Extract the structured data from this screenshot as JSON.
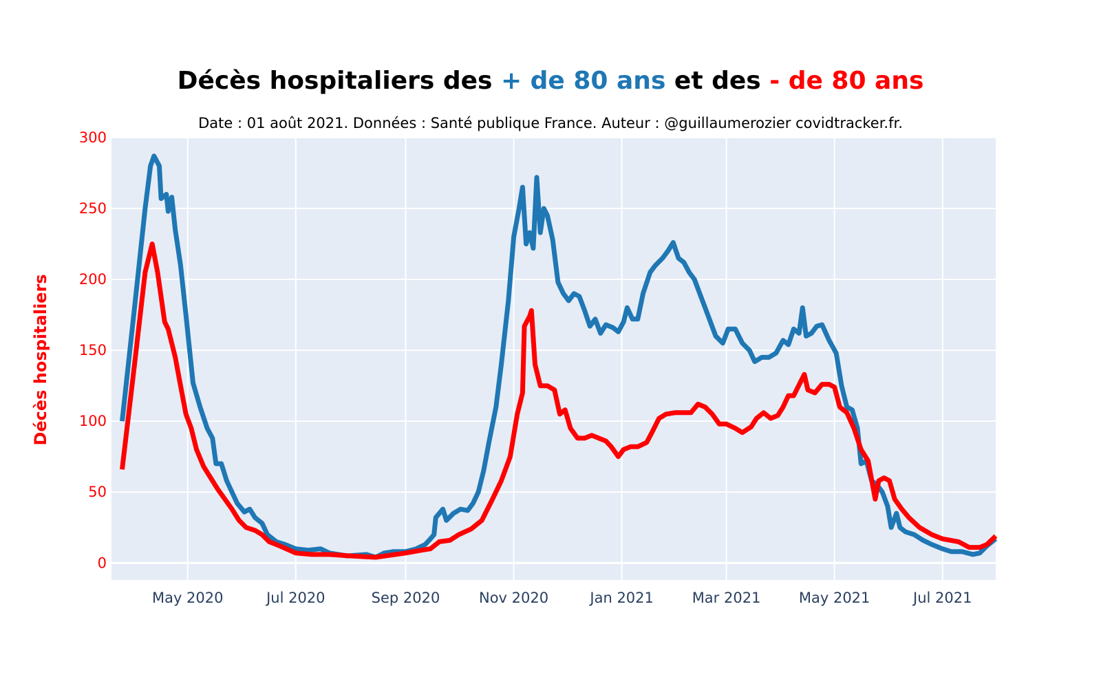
{
  "colors": {
    "over80": "#1f77b4",
    "under80": "#ff0000",
    "plot_bg": "#e5ecf6",
    "grid": "#ffffff",
    "tick_text": "#2a3f5f"
  },
  "chart_data": {
    "type": "line",
    "title": {
      "part1": "Décès hospitaliers des ",
      "part2": "+ de 80 ans",
      "part3": " et des ",
      "part4": "- de 80 ans"
    },
    "subtitle": "Date : 01 août 2021. Données : Santé publique France. Auteur : @guillaumerozier covidtracker.fr.",
    "ylabel": "Décès hospitaliers",
    "xlabel": "",
    "ylim": [
      -12,
      300
    ],
    "xlim": [
      "2020-03-19",
      "2021-07-31"
    ],
    "y_ticks": [
      0,
      50,
      100,
      150,
      200,
      250,
      300
    ],
    "x_ticks": [
      {
        "date": "2020-05-01",
        "label": "May 2020"
      },
      {
        "date": "2020-07-01",
        "label": "Jul 2020"
      },
      {
        "date": "2020-09-01",
        "label": "Sep 2020"
      },
      {
        "date": "2020-11-01",
        "label": "Nov 2020"
      },
      {
        "date": "2021-01-01",
        "label": "Jan 2021"
      },
      {
        "date": "2021-03-01",
        "label": "Mar 2021"
      },
      {
        "date": "2021-05-01",
        "label": "May 2021"
      },
      {
        "date": "2021-07-01",
        "label": "Jul 2021"
      }
    ],
    "grid": true,
    "series": [
      {
        "name": "+ de 80 ans",
        "color_key": "over80",
        "points": [
          [
            "2020-03-25",
            100
          ],
          [
            "2020-04-01",
            180
          ],
          [
            "2020-04-07",
            250
          ],
          [
            "2020-04-10",
            280
          ],
          [
            "2020-04-12",
            287
          ],
          [
            "2020-04-15",
            280
          ],
          [
            "2020-04-16",
            257
          ],
          [
            "2020-04-19",
            260
          ],
          [
            "2020-04-20",
            248
          ],
          [
            "2020-04-22",
            258
          ],
          [
            "2020-04-24",
            235
          ],
          [
            "2020-04-27",
            210
          ],
          [
            "2020-04-30",
            175
          ],
          [
            "2020-05-04",
            127
          ],
          [
            "2020-05-08",
            110
          ],
          [
            "2020-05-12",
            95
          ],
          [
            "2020-05-15",
            88
          ],
          [
            "2020-05-17",
            70
          ],
          [
            "2020-05-20",
            70
          ],
          [
            "2020-05-23",
            58
          ],
          [
            "2020-05-26",
            50
          ],
          [
            "2020-05-29",
            42
          ],
          [
            "2020-06-02",
            36
          ],
          [
            "2020-06-05",
            38
          ],
          [
            "2020-06-08",
            32
          ],
          [
            "2020-06-12",
            28
          ],
          [
            "2020-06-15",
            20
          ],
          [
            "2020-06-20",
            15
          ],
          [
            "2020-06-25",
            13
          ],
          [
            "2020-07-01",
            10
          ],
          [
            "2020-07-08",
            9
          ],
          [
            "2020-07-15",
            10
          ],
          [
            "2020-07-20",
            7
          ],
          [
            "2020-07-30",
            5
          ],
          [
            "2020-08-10",
            6
          ],
          [
            "2020-08-15",
            4
          ],
          [
            "2020-08-20",
            7
          ],
          [
            "2020-08-25",
            8
          ],
          [
            "2020-09-01",
            8
          ],
          [
            "2020-09-07",
            10
          ],
          [
            "2020-09-12",
            13
          ],
          [
            "2020-09-15",
            17
          ],
          [
            "2020-09-17",
            20
          ],
          [
            "2020-09-18",
            32
          ],
          [
            "2020-09-22",
            38
          ],
          [
            "2020-09-24",
            30
          ],
          [
            "2020-09-28",
            35
          ],
          [
            "2020-10-02",
            38
          ],
          [
            "2020-10-06",
            37
          ],
          [
            "2020-10-09",
            42
          ],
          [
            "2020-10-12",
            50
          ],
          [
            "2020-10-15",
            65
          ],
          [
            "2020-10-18",
            85
          ],
          [
            "2020-10-22",
            110
          ],
          [
            "2020-10-25",
            140
          ],
          [
            "2020-10-29",
            185
          ],
          [
            "2020-11-01",
            230
          ],
          [
            "2020-11-04",
            250
          ],
          [
            "2020-11-06",
            265
          ],
          [
            "2020-11-08",
            225
          ],
          [
            "2020-11-10",
            233
          ],
          [
            "2020-11-12",
            222
          ],
          [
            "2020-11-14",
            272
          ],
          [
            "2020-11-16",
            233
          ],
          [
            "2020-11-18",
            250
          ],
          [
            "2020-11-20",
            245
          ],
          [
            "2020-11-23",
            228
          ],
          [
            "2020-11-26",
            198
          ],
          [
            "2020-11-29",
            190
          ],
          [
            "2020-12-02",
            185
          ],
          [
            "2020-12-05",
            190
          ],
          [
            "2020-12-08",
            188
          ],
          [
            "2020-12-11",
            178
          ],
          [
            "2020-12-14",
            167
          ],
          [
            "2020-12-17",
            172
          ],
          [
            "2020-12-20",
            162
          ],
          [
            "2020-12-23",
            168
          ],
          [
            "2020-12-27",
            166
          ],
          [
            "2020-12-30",
            163
          ],
          [
            "2021-01-02",
            170
          ],
          [
            "2021-01-04",
            180
          ],
          [
            "2021-01-07",
            172
          ],
          [
            "2021-01-10",
            172
          ],
          [
            "2021-01-13",
            190
          ],
          [
            "2021-01-17",
            205
          ],
          [
            "2021-01-20",
            210
          ],
          [
            "2021-01-24",
            215
          ],
          [
            "2021-01-27",
            220
          ],
          [
            "2021-01-30",
            226
          ],
          [
            "2021-02-02",
            215
          ],
          [
            "2021-02-05",
            212
          ],
          [
            "2021-02-08",
            205
          ],
          [
            "2021-02-11",
            200
          ],
          [
            "2021-02-14",
            190
          ],
          [
            "2021-02-17",
            180
          ],
          [
            "2021-02-20",
            170
          ],
          [
            "2021-02-23",
            160
          ],
          [
            "2021-02-27",
            155
          ],
          [
            "2021-03-02",
            165
          ],
          [
            "2021-03-06",
            165
          ],
          [
            "2021-03-10",
            155
          ],
          [
            "2021-03-14",
            150
          ],
          [
            "2021-03-17",
            142
          ],
          [
            "2021-03-21",
            145
          ],
          [
            "2021-03-25",
            145
          ],
          [
            "2021-03-29",
            148
          ],
          [
            "2021-04-02",
            157
          ],
          [
            "2021-04-05",
            154
          ],
          [
            "2021-04-08",
            165
          ],
          [
            "2021-04-11",
            162
          ],
          [
            "2021-04-13",
            180
          ],
          [
            "2021-04-15",
            160
          ],
          [
            "2021-04-18",
            162
          ],
          [
            "2021-04-21",
            167
          ],
          [
            "2021-04-24",
            168
          ],
          [
            "2021-04-28",
            157
          ],
          [
            "2021-05-02",
            148
          ],
          [
            "2021-05-05",
            125
          ],
          [
            "2021-05-08",
            110
          ],
          [
            "2021-05-11",
            108
          ],
          [
            "2021-05-14",
            95
          ],
          [
            "2021-05-16",
            70
          ],
          [
            "2021-05-19",
            72
          ],
          [
            "2021-05-22",
            58
          ],
          [
            "2021-05-25",
            55
          ],
          [
            "2021-05-28",
            50
          ],
          [
            "2021-05-31",
            40
          ],
          [
            "2021-06-02",
            25
          ],
          [
            "2021-06-05",
            35
          ],
          [
            "2021-06-07",
            25
          ],
          [
            "2021-06-10",
            22
          ],
          [
            "2021-06-15",
            20
          ],
          [
            "2021-06-20",
            16
          ],
          [
            "2021-06-25",
            13
          ],
          [
            "2021-07-01",
            10
          ],
          [
            "2021-07-06",
            8
          ],
          [
            "2021-07-12",
            8
          ],
          [
            "2021-07-18",
            6
          ],
          [
            "2021-07-22",
            7
          ],
          [
            "2021-07-26",
            12
          ],
          [
            "2021-07-31",
            17
          ]
        ]
      },
      {
        "name": "- de 80 ans",
        "color_key": "under80",
        "points": [
          [
            "2020-03-25",
            66
          ],
          [
            "2020-04-01",
            140
          ],
          [
            "2020-04-07",
            205
          ],
          [
            "2020-04-11",
            225
          ],
          [
            "2020-04-14",
            205
          ],
          [
            "2020-04-18",
            170
          ],
          [
            "2020-04-20",
            165
          ],
          [
            "2020-04-22",
            155
          ],
          [
            "2020-04-24",
            145
          ],
          [
            "2020-04-27",
            125
          ],
          [
            "2020-04-30",
            105
          ],
          [
            "2020-05-03",
            95
          ],
          [
            "2020-05-06",
            80
          ],
          [
            "2020-05-10",
            68
          ],
          [
            "2020-05-14",
            60
          ],
          [
            "2020-05-18",
            52
          ],
          [
            "2020-05-22",
            45
          ],
          [
            "2020-05-26",
            38
          ],
          [
            "2020-05-30",
            30
          ],
          [
            "2020-06-03",
            25
          ],
          [
            "2020-06-08",
            23
          ],
          [
            "2020-06-12",
            20
          ],
          [
            "2020-06-16",
            15
          ],
          [
            "2020-06-22",
            12
          ],
          [
            "2020-07-01",
            7
          ],
          [
            "2020-07-10",
            6
          ],
          [
            "2020-07-20",
            6
          ],
          [
            "2020-08-01",
            5
          ],
          [
            "2020-08-15",
            4
          ],
          [
            "2020-09-01",
            7
          ],
          [
            "2020-09-10",
            9
          ],
          [
            "2020-09-15",
            10
          ],
          [
            "2020-09-20",
            15
          ],
          [
            "2020-09-26",
            16
          ],
          [
            "2020-10-01",
            20
          ],
          [
            "2020-10-08",
            24
          ],
          [
            "2020-10-14",
            30
          ],
          [
            "2020-10-20",
            45
          ],
          [
            "2020-10-25",
            58
          ],
          [
            "2020-10-30",
            75
          ],
          [
            "2020-11-03",
            105
          ],
          [
            "2020-11-06",
            120
          ],
          [
            "2020-11-07",
            167
          ],
          [
            "2020-11-10",
            174
          ],
          [
            "2020-11-11",
            178
          ],
          [
            "2020-11-13",
            140
          ],
          [
            "2020-11-16",
            125
          ],
          [
            "2020-11-20",
            125
          ],
          [
            "2020-11-24",
            122
          ],
          [
            "2020-11-27",
            105
          ],
          [
            "2020-11-30",
            108
          ],
          [
            "2020-12-03",
            95
          ],
          [
            "2020-12-07",
            88
          ],
          [
            "2020-12-11",
            88
          ],
          [
            "2020-12-15",
            90
          ],
          [
            "2020-12-19",
            88
          ],
          [
            "2020-12-23",
            86
          ],
          [
            "2020-12-26",
            82
          ],
          [
            "2020-12-30",
            75
          ],
          [
            "2021-01-02",
            80
          ],
          [
            "2021-01-06",
            82
          ],
          [
            "2021-01-10",
            82
          ],
          [
            "2021-01-15",
            85
          ],
          [
            "2021-01-18",
            92
          ],
          [
            "2021-01-22",
            102
          ],
          [
            "2021-01-26",
            105
          ],
          [
            "2021-01-31",
            106
          ],
          [
            "2021-02-05",
            106
          ],
          [
            "2021-02-09",
            106
          ],
          [
            "2021-02-13",
            112
          ],
          [
            "2021-02-17",
            110
          ],
          [
            "2021-02-21",
            105
          ],
          [
            "2021-02-25",
            98
          ],
          [
            "2021-03-01",
            98
          ],
          [
            "2021-03-06",
            95
          ],
          [
            "2021-03-10",
            92
          ],
          [
            "2021-03-15",
            96
          ],
          [
            "2021-03-18",
            102
          ],
          [
            "2021-03-22",
            106
          ],
          [
            "2021-03-26",
            102
          ],
          [
            "2021-03-30",
            104
          ],
          [
            "2021-04-02",
            110
          ],
          [
            "2021-04-05",
            118
          ],
          [
            "2021-04-08",
            118
          ],
          [
            "2021-04-12",
            128
          ],
          [
            "2021-04-14",
            133
          ],
          [
            "2021-04-16",
            122
          ],
          [
            "2021-04-20",
            120
          ],
          [
            "2021-04-24",
            126
          ],
          [
            "2021-04-28",
            126
          ],
          [
            "2021-05-01",
            124
          ],
          [
            "2021-05-04",
            110
          ],
          [
            "2021-05-08",
            106
          ],
          [
            "2021-05-12",
            95
          ],
          [
            "2021-05-16",
            80
          ],
          [
            "2021-05-20",
            72
          ],
          [
            "2021-05-24",
            45
          ],
          [
            "2021-05-26",
            58
          ],
          [
            "2021-05-29",
            60
          ],
          [
            "2021-06-01",
            58
          ],
          [
            "2021-06-04",
            45
          ],
          [
            "2021-06-08",
            38
          ],
          [
            "2021-06-12",
            32
          ],
          [
            "2021-06-18",
            25
          ],
          [
            "2021-06-25",
            20
          ],
          [
            "2021-07-01",
            17
          ],
          [
            "2021-07-10",
            15
          ],
          [
            "2021-07-16",
            11
          ],
          [
            "2021-07-22",
            11
          ],
          [
            "2021-07-26",
            13
          ],
          [
            "2021-07-31",
            19
          ]
        ]
      }
    ]
  }
}
